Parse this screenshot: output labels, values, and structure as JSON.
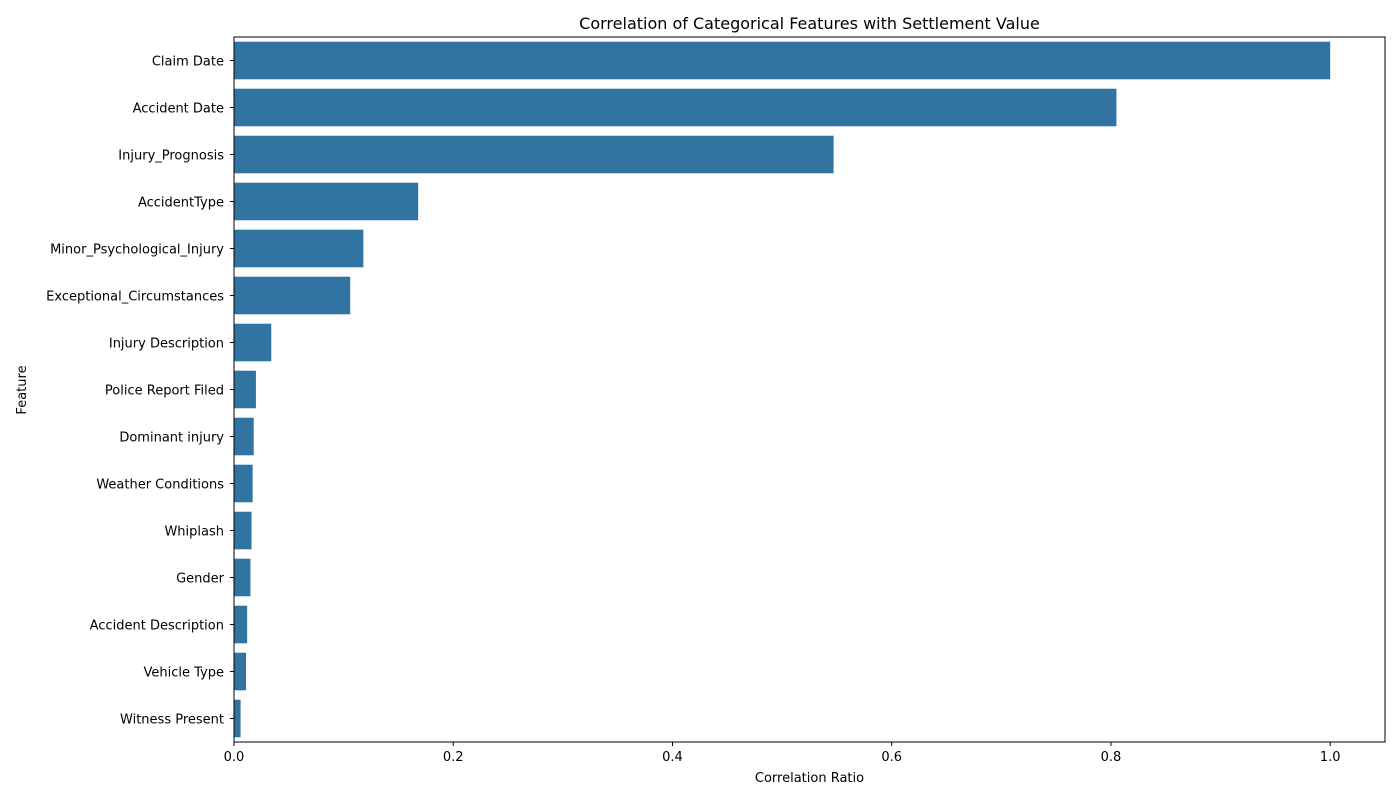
{
  "chart_data": {
    "type": "bar",
    "orientation": "horizontal",
    "title": "Correlation of Categorical Features with Settlement Value",
    "xlabel": "Correlation Ratio",
    "ylabel": "Feature",
    "xlim": [
      0,
      1.05
    ],
    "xticks": [
      0.0,
      0.2,
      0.4,
      0.6,
      0.8,
      1.0
    ],
    "xtick_labels": [
      "0.0",
      "0.2",
      "0.4",
      "0.6",
      "0.8",
      "1.0"
    ],
    "grid": false,
    "categories": [
      "Claim Date",
      "Accident Date",
      "Injury_Prognosis",
      "AccidentType",
      "Minor_Psychological_Injury",
      "Exceptional_Circumstances",
      "Injury Description",
      "Police Report Filed",
      "Dominant injury",
      "Weather Conditions",
      "Whiplash",
      "Gender",
      "Accident Description",
      "Vehicle Type",
      "Witness Present"
    ],
    "values": [
      1.0,
      0.805,
      0.547,
      0.168,
      0.118,
      0.106,
      0.034,
      0.02,
      0.018,
      0.017,
      0.016,
      0.015,
      0.012,
      0.011,
      0.006
    ],
    "bar_color": "#3274a1"
  }
}
